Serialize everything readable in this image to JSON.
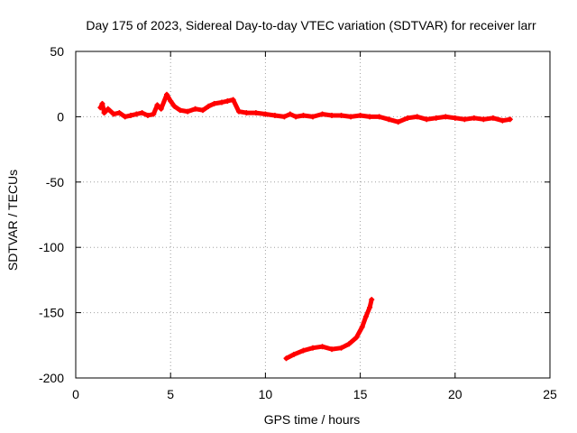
{
  "chart_data": {
    "type": "scatter",
    "title": "Day 175 of 2023, Sidereal Day-to-day VTEC variation (SDTVAR) for receiver larr",
    "xlabel": "GPS time / hours",
    "ylabel": "SDTVAR / TECUs",
    "xlim": [
      0,
      25
    ],
    "ylim": [
      -200,
      50
    ],
    "xticks": [
      0,
      5,
      10,
      15,
      20,
      25
    ],
    "yticks": [
      -200,
      -150,
      -100,
      -50,
      0,
      50
    ],
    "xtick_labels": [
      "0",
      "5",
      "10",
      "15",
      "20",
      "25"
    ],
    "ytick_labels": [
      "-200",
      "-150",
      "-100",
      "-50",
      "0",
      "50"
    ],
    "grid": true,
    "series_color": "#ff0000",
    "series": [
      {
        "name": "main trace",
        "points": [
          [
            1.3,
            7
          ],
          [
            1.4,
            10
          ],
          [
            1.5,
            3
          ],
          [
            1.7,
            6
          ],
          [
            2.0,
            2
          ],
          [
            2.3,
            3
          ],
          [
            2.6,
            0
          ],
          [
            2.9,
            1
          ],
          [
            3.2,
            2
          ],
          [
            3.5,
            3
          ],
          [
            3.8,
            1
          ],
          [
            4.1,
            2
          ],
          [
            4.3,
            9
          ],
          [
            4.5,
            6
          ],
          [
            4.8,
            17
          ],
          [
            5.0,
            12
          ],
          [
            5.2,
            8
          ],
          [
            5.5,
            5
          ],
          [
            5.9,
            4
          ],
          [
            6.3,
            6
          ],
          [
            6.7,
            5
          ],
          [
            7.0,
            8
          ],
          [
            7.3,
            10
          ],
          [
            7.7,
            11
          ],
          [
            8.0,
            12
          ],
          [
            8.3,
            13
          ],
          [
            8.6,
            4
          ],
          [
            9.0,
            3
          ],
          [
            9.5,
            3
          ],
          [
            10.0,
            2
          ],
          [
            10.5,
            1
          ],
          [
            11.0,
            0
          ],
          [
            11.3,
            2
          ],
          [
            11.6,
            0
          ],
          [
            12.0,
            1
          ],
          [
            12.5,
            0
          ],
          [
            13.0,
            2
          ],
          [
            13.5,
            1
          ],
          [
            14.0,
            1
          ],
          [
            14.5,
            0
          ],
          [
            15.0,
            1
          ],
          [
            15.5,
            0
          ],
          [
            16.0,
            0
          ],
          [
            16.5,
            -2
          ],
          [
            17.0,
            -4
          ],
          [
            17.5,
            -1
          ],
          [
            18.0,
            0
          ],
          [
            18.5,
            -2
          ],
          [
            19.0,
            -1
          ],
          [
            19.5,
            0
          ],
          [
            20.0,
            -1
          ],
          [
            20.5,
            -2
          ],
          [
            21.0,
            -1
          ],
          [
            21.5,
            -2
          ],
          [
            22.0,
            -1
          ],
          [
            22.5,
            -3
          ],
          [
            22.9,
            -2
          ]
        ]
      },
      {
        "name": "low arc",
        "points": [
          [
            11.1,
            -185
          ],
          [
            11.5,
            -182
          ],
          [
            12.0,
            -179
          ],
          [
            12.5,
            -177
          ],
          [
            13.0,
            -176
          ],
          [
            13.5,
            -178
          ],
          [
            14.0,
            -177
          ],
          [
            14.4,
            -174
          ],
          [
            14.8,
            -169
          ],
          [
            15.1,
            -161
          ],
          [
            15.3,
            -153
          ],
          [
            15.5,
            -146
          ],
          [
            15.6,
            -140
          ]
        ]
      }
    ]
  }
}
